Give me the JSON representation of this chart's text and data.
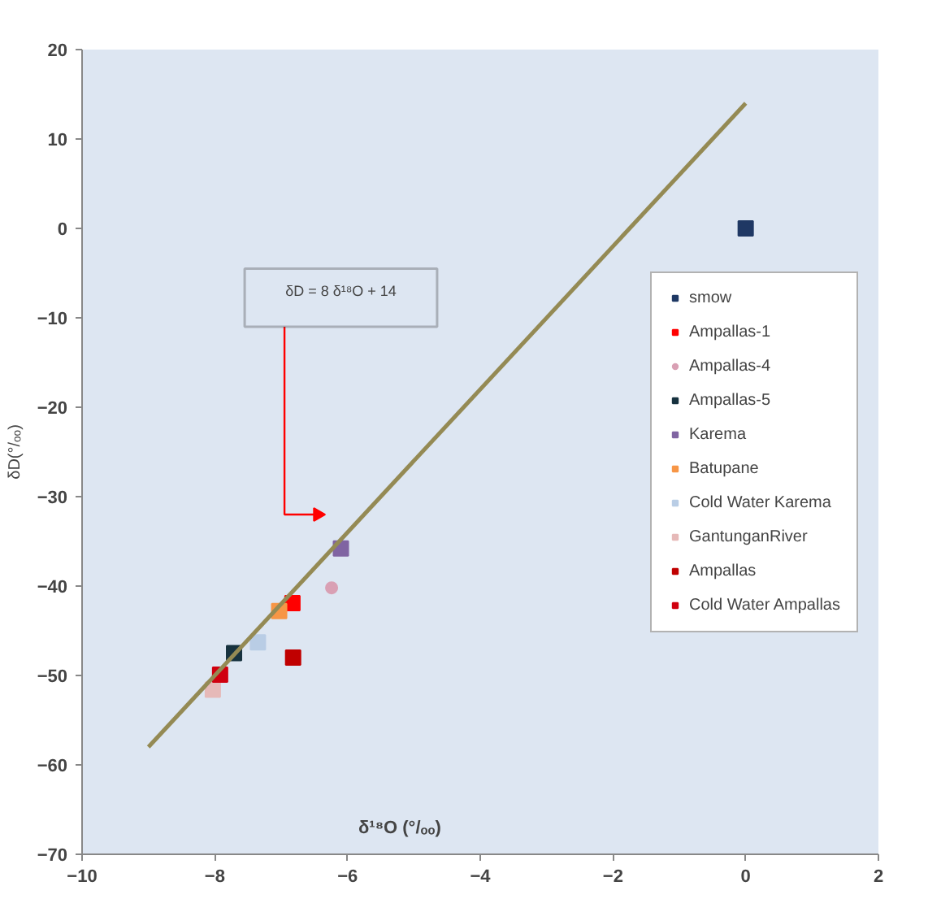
{
  "chart_data": {
    "type": "scatter",
    "xlabel": "δ¹⁸O (°/ₒₒ)",
    "ylabel": "δD(°/ₒₒ)",
    "xlim": [
      -10,
      2
    ],
    "ylim": [
      -70,
      20
    ],
    "xticks": [
      -10,
      -8,
      -6,
      -4,
      -2,
      0,
      2
    ],
    "yticks": [
      -70,
      -60,
      -50,
      -40,
      -30,
      -20,
      -10,
      0,
      10,
      20
    ],
    "grid": false,
    "legend": "right",
    "marker": "square",
    "annotations": [
      "δD = 8 δ¹⁸O + 14"
    ],
    "series": [
      {
        "name": "smow",
        "color": "#1f3864",
        "x": [
          0
        ],
        "values": [
          0
        ]
      },
      {
        "name": "Ampallas-1",
        "color": "#ff0000",
        "x": [
          -6.83
        ],
        "values": [
          -41.9
        ]
      },
      {
        "name": "Ampallas-4",
        "color": "#d9a0b4",
        "marker": "circle",
        "x": [
          -6.24
        ],
        "values": [
          -40.2
        ]
      },
      {
        "name": "Ampallas-5",
        "color": "#17323f",
        "x": [
          -7.71
        ],
        "values": [
          -47.5
        ]
      },
      {
        "name": "Karema",
        "color": "#8064a2",
        "x": [
          -6.1
        ],
        "values": [
          -35.8
        ]
      },
      {
        "name": "Batupane",
        "color": "#f79646",
        "x": [
          -7.03
        ],
        "values": [
          -42.8
        ]
      },
      {
        "name": "Cold Water Karema",
        "color": "#b9cde5",
        "x": [
          -7.35
        ],
        "values": [
          -46.3
        ]
      },
      {
        "name": "GantunganRiver",
        "color": "#e6b9b8",
        "x": [
          -8.03
        ],
        "values": [
          -51.6
        ]
      },
      {
        "name": "Ampallas",
        "color": "#c00000",
        "x": [
          -6.82
        ],
        "values": [
          -48
        ]
      },
      {
        "name": "Cold Water Ampallas",
        "color": "#d0000f",
        "x": [
          -7.92
        ],
        "values": [
          -49.9
        ]
      },
      {
        "type": "line",
        "color": "#948a54",
        "marker": "none",
        "x": [
          -9,
          0
        ],
        "values": [
          -58,
          14
        ]
      }
    ]
  }
}
